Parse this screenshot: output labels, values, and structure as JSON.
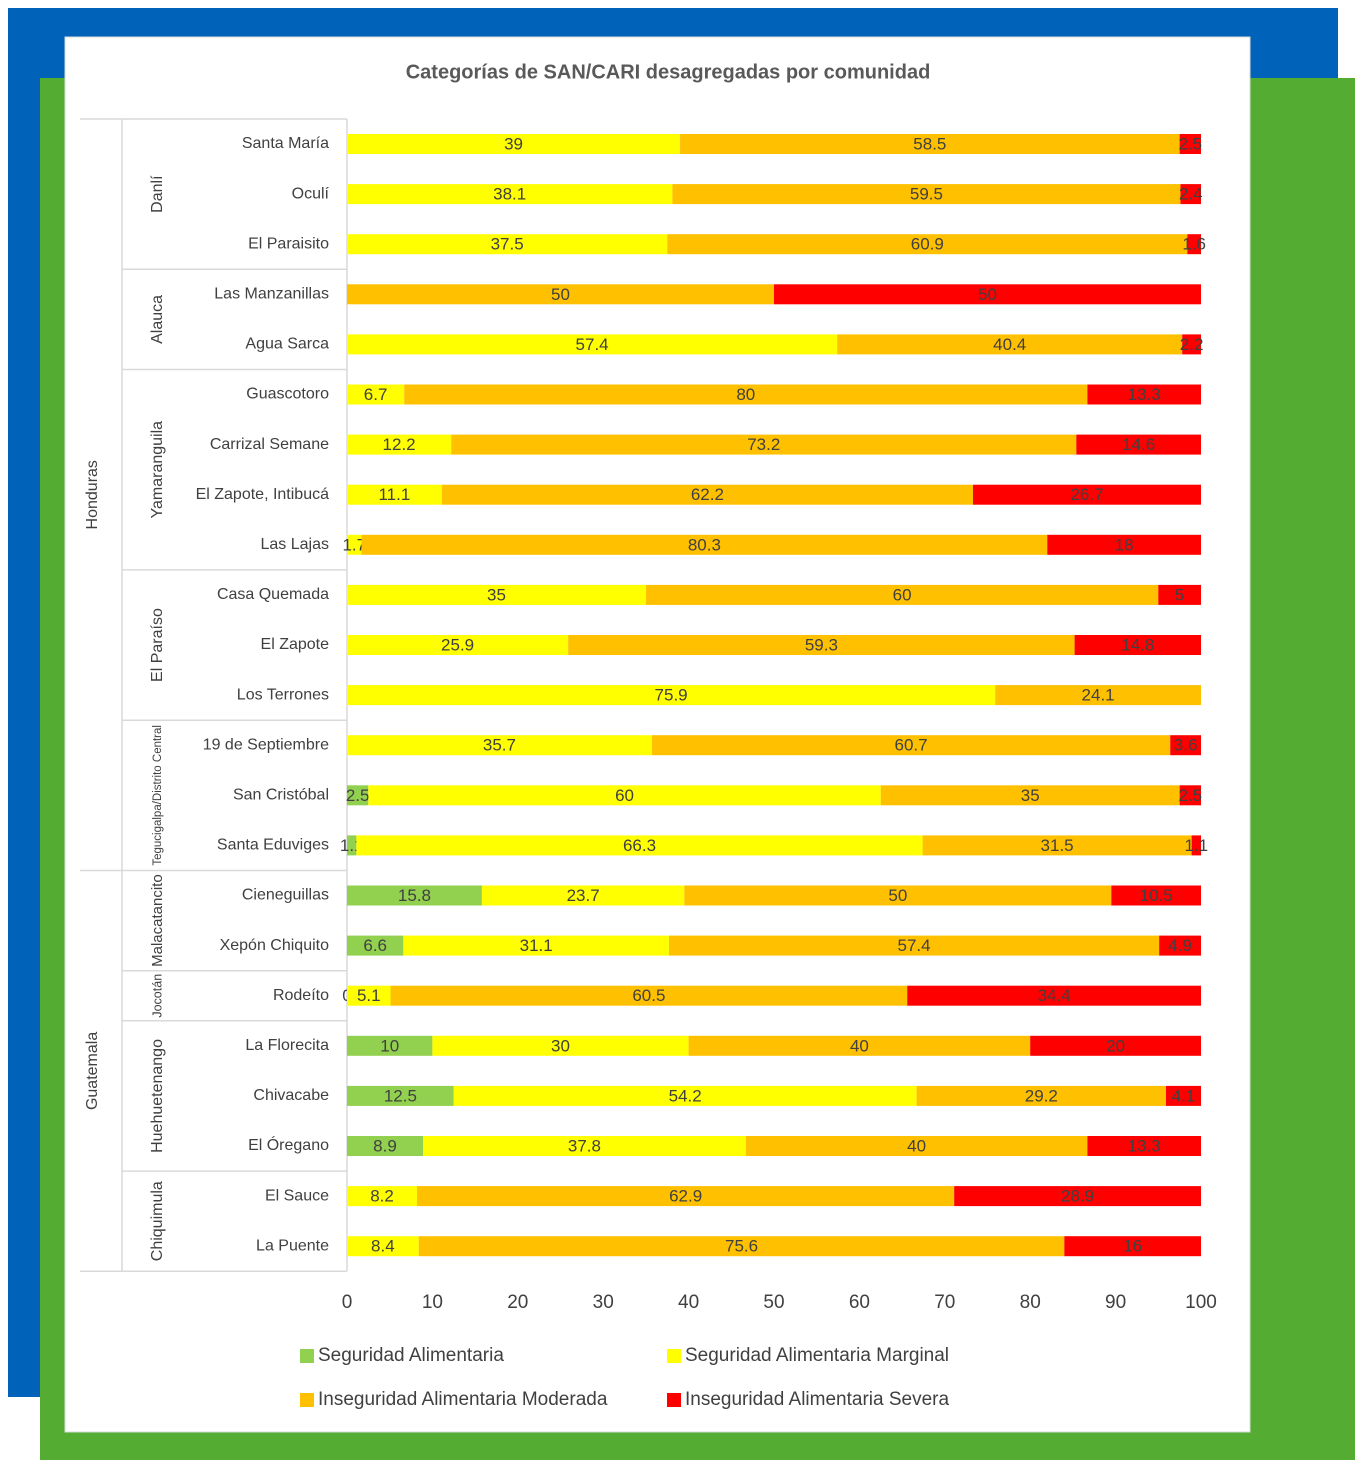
{
  "chart_data": {
    "type": "stacked-bar-horizontal",
    "title": "Categorías de SAN/CARI desagregadas por comunidad",
    "groups": [
      {
        "name": "Honduras",
        "subgroups": [
          {
            "name": "Danlí",
            "categories": [
              "Santa María",
              "Oculí",
              "El Paraisito"
            ]
          },
          {
            "name": "Alauca",
            "categories": [
              "Las Manzanillas",
              "Agua Sarca"
            ]
          },
          {
            "name": "Yamaranguila",
            "categories": [
              "Guascotoro",
              "Carrizal Semane",
              "El Zapote, Intibucá",
              "Las Lajas"
            ]
          },
          {
            "name": "El Paraíso",
            "categories": [
              "Casa Quemada",
              "El Zapote",
              "Los Terrones"
            ]
          },
          {
            "name": "Tegucigalpa/Distrito Central",
            "categories": [
              "19 de Septiembre",
              "San Cristóbal",
              "Santa Eduviges"
            ]
          }
        ]
      },
      {
        "name": "Guatemala",
        "subgroups": [
          {
            "name": "Malacatancito",
            "categories": [
              "Cieneguillas",
              "Xepón Chiquito"
            ]
          },
          {
            "name": "Jocotán",
            "categories": [
              "Rodeíto"
            ]
          },
          {
            "name": "Huehuetenango",
            "categories": [
              "La Florecita",
              "Chivacabe",
              "El Óregano"
            ]
          },
          {
            "name": "Chiquimula",
            "categories": [
              "El Sauce",
              "La Puente"
            ]
          }
        ]
      }
    ],
    "series": [
      {
        "name": "Seguridad Alimentaria",
        "color": "#92d050",
        "values": [
          null,
          null,
          null,
          null,
          null,
          null,
          null,
          null,
          null,
          null,
          null,
          null,
          null,
          2.5,
          1.1,
          15.8,
          6.6,
          0,
          10,
          12.5,
          8.9,
          null,
          null
        ]
      },
      {
        "name": "Seguridad Alimentaria Marginal",
        "color": "#ffff00",
        "values": [
          39,
          38.1,
          37.5,
          null,
          57.4,
          6.7,
          12.2,
          11.1,
          1.7,
          35,
          25.9,
          75.9,
          35.7,
          60,
          66.3,
          23.7,
          31.1,
          5.1,
          30,
          54.2,
          37.8,
          8.2,
          8.4
        ]
      },
      {
        "name": "Inseguridad Alimentaria Moderada",
        "color": "#ffc000",
        "values": [
          58.5,
          59.5,
          60.9,
          50,
          40.4,
          80,
          73.2,
          62.2,
          80.3,
          60,
          59.3,
          24.1,
          60.7,
          35,
          31.5,
          50,
          57.4,
          60.5,
          40,
          29.2,
          40,
          62.9,
          75.6
        ]
      },
      {
        "name": "Inseguridad Alimentaria Severa",
        "color": "#ff0000",
        "values": [
          2.5,
          2.4,
          1.6,
          50,
          2.2,
          13.3,
          14.6,
          26.7,
          18,
          5,
          14.8,
          null,
          3.6,
          2.5,
          1.1,
          10.5,
          4.9,
          34.4,
          20,
          4.1,
          13.3,
          28.9,
          16
        ]
      }
    ],
    "xlim": [
      0,
      100
    ],
    "xticks": [
      0,
      10,
      20,
      30,
      40,
      50,
      60,
      70,
      80,
      90,
      100
    ]
  }
}
